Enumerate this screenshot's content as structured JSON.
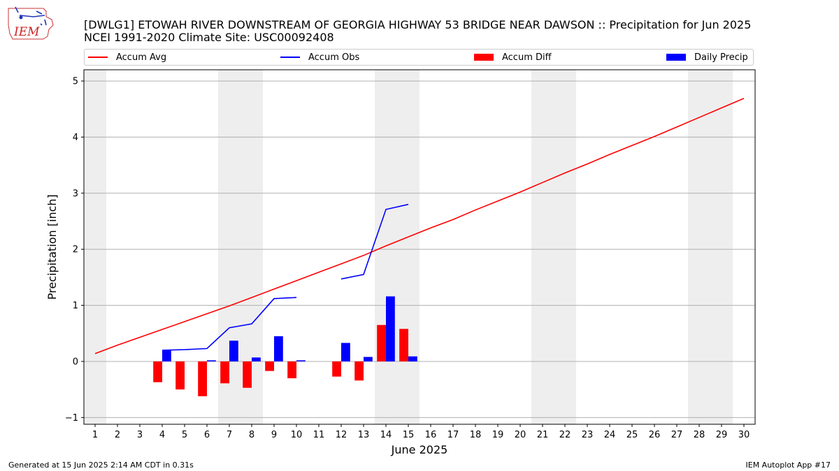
{
  "header": {
    "logo_text": "IEM",
    "title": "[DWLG1] ETOWAH RIVER DOWNSTREAM OF GEORGIA HIGHWAY 53 BRIDGE NEAR DAWSON :: Precipitation for Jun 2025",
    "subtitle": "NCEI 1991-2020 Climate Site: USC00092408"
  },
  "footer": {
    "generated": "Generated at 15 Jun 2025 2:14 AM CDT in 0.31s",
    "app": "IEM Autoplot App #17"
  },
  "colors": {
    "accum_avg": "#ff0000",
    "accum_obs": "#0000ff",
    "accum_diff": "#ff0000",
    "daily_precip": "#0000ff",
    "weekend_shade": "#eeeeee",
    "grid": "#b0b0b0"
  },
  "chart_data": {
    "type": "bar",
    "xlabel": "June 2025",
    "ylabel": "Precipitation [inch]",
    "xlim": [
      0.5,
      30.5
    ],
    "ylim": [
      -1.12,
      5.2
    ],
    "yticks": [
      -1,
      0,
      1,
      2,
      3,
      4,
      5
    ],
    "xticks": [
      1,
      2,
      3,
      4,
      5,
      6,
      7,
      8,
      9,
      10,
      11,
      12,
      13,
      14,
      15,
      16,
      17,
      18,
      19,
      20,
      21,
      22,
      23,
      24,
      25,
      26,
      27,
      28,
      29,
      30
    ],
    "grid": "horizontal",
    "legend_placement": "top",
    "weekend_spans": [
      [
        0.5,
        1.5
      ],
      [
        6.5,
        8.5
      ],
      [
        13.5,
        15.5
      ],
      [
        20.5,
        22.5
      ],
      [
        27.5,
        29.5
      ]
    ],
    "series": [
      {
        "name": "Accum Avg",
        "kind": "line",
        "x": [
          1,
          2,
          3,
          4,
          5,
          6,
          7,
          8,
          9,
          10,
          11,
          12,
          13,
          14,
          15,
          16,
          17,
          18,
          19,
          20,
          21,
          22,
          23,
          24,
          25,
          26,
          27,
          28,
          29,
          30
        ],
        "values": [
          0.14,
          0.29,
          0.43,
          0.57,
          0.71,
          0.85,
          0.99,
          1.14,
          1.29,
          1.44,
          1.59,
          1.74,
          1.89,
          2.06,
          2.22,
          2.38,
          2.53,
          2.7,
          2.86,
          3.02,
          3.19,
          3.36,
          3.52,
          3.69,
          3.85,
          4.01,
          4.18,
          4.35,
          4.52,
          4.69
        ]
      },
      {
        "name": "Accum Obs",
        "kind": "line",
        "x": [
          4,
          5,
          6,
          7,
          8,
          9,
          10,
          11,
          12,
          13,
          14,
          15
        ],
        "values": [
          0.2,
          0.21,
          0.23,
          0.6,
          0.67,
          1.12,
          1.14,
          null,
          1.47,
          1.55,
          2.71,
          2.8
        ]
      },
      {
        "name": "Accum Diff",
        "kind": "bar",
        "offset": -0.2,
        "x": [
          4,
          5,
          6,
          7,
          8,
          9,
          10,
          12,
          13,
          14,
          15
        ],
        "values": [
          -0.37,
          -0.5,
          -0.62,
          -0.39,
          -0.47,
          -0.17,
          -0.3,
          -0.27,
          -0.34,
          0.65,
          0.58
        ]
      },
      {
        "name": "Daily Precip",
        "kind": "bar",
        "offset": 0.2,
        "x": [
          4,
          6,
          7,
          8,
          9,
          10,
          12,
          13,
          14,
          15
        ],
        "values": [
          0.2,
          0.02,
          0.37,
          0.07,
          0.45,
          0.02,
          0.33,
          0.08,
          1.16,
          0.09
        ]
      }
    ]
  }
}
